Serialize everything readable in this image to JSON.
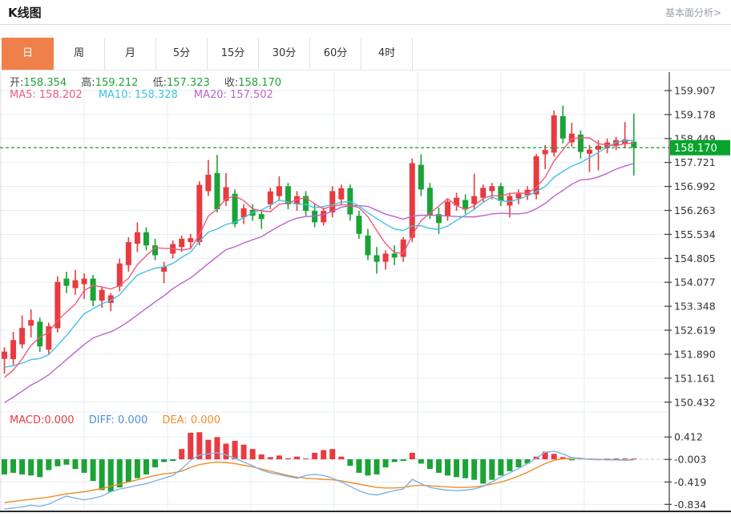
{
  "header": {
    "title": "K线图",
    "link_label": "基本面分析>"
  },
  "tabs": [
    {
      "label": "日",
      "active": true
    },
    {
      "label": "周",
      "active": false
    },
    {
      "label": "月",
      "active": false
    },
    {
      "label": "5分",
      "active": false
    },
    {
      "label": "15分",
      "active": false
    },
    {
      "label": "30分",
      "active": false
    },
    {
      "label": "60分",
      "active": false
    },
    {
      "label": "4时",
      "active": false
    }
  ],
  "indicators": {
    "ohlc": {
      "open_label": "开:",
      "open": "158.354",
      "high_label": "高:",
      "high": "159.212",
      "low_label": "低:",
      "low": "157.323",
      "close_label": "收:",
      "close": "158.170"
    },
    "ma": {
      "ma5_label": "MA5:",
      "ma5": "158.202",
      "ma10_label": "MA10:",
      "ma10": "158.328",
      "ma20_label": "MA20:",
      "ma20": "157.502"
    },
    "macd": {
      "macd_label": "MACD:",
      "macd": "0.000",
      "diff_label": "DIFF:",
      "diff": "0.000",
      "dea_label": "DEA:",
      "dea": "0.000"
    }
  },
  "colors": {
    "up": "#e83b40",
    "down": "#1ba336",
    "accent": "#f0804a",
    "ma5": "#ee5b80",
    "ma10": "#40c4e4",
    "ma20": "#bd62ce",
    "diff": "#7fb2e5",
    "dea": "#f08c28",
    "price_label_bg": "#09a42c",
    "current_line": "#09a42c",
    "grid": "#e4edf4",
    "axis": "#3c3c3c",
    "zero_line": "#aacdec",
    "tick_text": "#333333"
  },
  "chart_data": {
    "type": "candlestick",
    "title": "Daily K-line with MA5/MA10/MA20 and MACD sub-chart",
    "legend_position": "top-left",
    "grid": true,
    "price_axis_ticks": [
      159.907,
      159.178,
      158.449,
      157.721,
      156.992,
      156.263,
      155.534,
      154.805,
      154.077,
      153.348,
      152.619,
      151.89,
      151.161,
      150.432
    ],
    "price_axis_range": [
      150.432,
      159.907
    ],
    "current_price": 158.17,
    "last_candle_ohlc": {
      "open": 158.354,
      "high": 159.212,
      "low": 157.323,
      "close": 158.17
    },
    "candles": [
      [
        151.75,
        152.1,
        151.3,
        151.97
      ],
      [
        151.74,
        152.57,
        151.56,
        152.32
      ],
      [
        152.19,
        153.07,
        152.07,
        152.69
      ],
      [
        152.76,
        153.25,
        152.4,
        152.93
      ],
      [
        152.88,
        153.0,
        151.96,
        152.13
      ],
      [
        152.03,
        152.85,
        151.9,
        152.74
      ],
      [
        152.68,
        154.26,
        152.55,
        154.09
      ],
      [
        154.19,
        154.4,
        153.75,
        153.97
      ],
      [
        153.9,
        154.46,
        153.7,
        154.14
      ],
      [
        154.02,
        154.35,
        153.57,
        154.19
      ],
      [
        154.19,
        154.3,
        153.35,
        153.52
      ],
      [
        153.52,
        153.95,
        153.3,
        153.85
      ],
      [
        153.45,
        153.75,
        153.2,
        153.68
      ],
      [
        153.95,
        154.8,
        153.8,
        154.65
      ],
      [
        154.6,
        155.45,
        154.4,
        155.3
      ],
      [
        155.25,
        155.9,
        155.0,
        155.6
      ],
      [
        155.6,
        155.75,
        155.05,
        155.2
      ],
      [
        155.2,
        155.4,
        154.75,
        154.9
      ],
      [
        154.4,
        154.7,
        154.05,
        154.55
      ],
      [
        154.95,
        155.35,
        154.8,
        155.24
      ],
      [
        155.15,
        155.5,
        155.0,
        155.4
      ],
      [
        155.3,
        155.55,
        155.1,
        155.42
      ],
      [
        155.3,
        157.15,
        155.2,
        157.04
      ],
      [
        156.85,
        157.8,
        156.7,
        157.35
      ],
      [
        157.4,
        157.95,
        156.2,
        156.3
      ],
      [
        156.55,
        157.4,
        156.4,
        156.97
      ],
      [
        156.77,
        156.9,
        155.75,
        155.85
      ],
      [
        156.05,
        156.45,
        155.85,
        156.33
      ],
      [
        156.28,
        156.45,
        155.95,
        156.1
      ],
      [
        156.15,
        156.3,
        155.7,
        156.0
      ],
      [
        156.45,
        156.95,
        156.3,
        156.84
      ],
      [
        156.7,
        157.3,
        156.55,
        157.0
      ],
      [
        157.0,
        157.1,
        156.3,
        156.45
      ],
      [
        156.45,
        156.85,
        156.25,
        156.7
      ],
      [
        156.7,
        156.85,
        156.1,
        156.25
      ],
      [
        156.25,
        156.45,
        155.75,
        155.9
      ],
      [
        155.9,
        156.35,
        155.8,
        156.25
      ],
      [
        156.2,
        157.0,
        156.05,
        156.85
      ],
      [
        156.6,
        157.05,
        156.45,
        156.94
      ],
      [
        156.94,
        157.05,
        155.95,
        156.14
      ],
      [
        156.1,
        156.25,
        155.4,
        155.55
      ],
      [
        155.5,
        155.7,
        154.75,
        154.9
      ],
      [
        154.9,
        155.15,
        154.34,
        154.7
      ],
      [
        154.7,
        155.05,
        154.46,
        154.95
      ],
      [
        154.95,
        155.2,
        154.6,
        154.83
      ],
      [
        154.85,
        155.45,
        154.7,
        155.38
      ],
      [
        155.43,
        157.84,
        155.3,
        157.7
      ],
      [
        157.65,
        157.97,
        156.7,
        156.9
      ],
      [
        156.95,
        157.1,
        156.0,
        156.1
      ],
      [
        156.15,
        156.35,
        155.55,
        155.88
      ],
      [
        156.09,
        156.6,
        155.95,
        156.53
      ],
      [
        156.41,
        156.8,
        156.25,
        156.65
      ],
      [
        156.58,
        156.75,
        156.15,
        156.29
      ],
      [
        156.46,
        157.38,
        156.3,
        156.7
      ],
      [
        156.65,
        157.05,
        156.5,
        156.95
      ],
      [
        156.85,
        157.1,
        156.6,
        157.0
      ],
      [
        157.0,
        157.1,
        156.4,
        156.55
      ],
      [
        156.41,
        156.8,
        156.05,
        156.7
      ],
      [
        156.63,
        156.9,
        156.45,
        156.77
      ],
      [
        156.72,
        157.0,
        156.58,
        156.89
      ],
      [
        156.75,
        157.98,
        156.6,
        157.91
      ],
      [
        157.97,
        158.25,
        157.52,
        158.1
      ],
      [
        158.02,
        159.3,
        157.9,
        159.15
      ],
      [
        159.13,
        159.45,
        158.3,
        158.45
      ],
      [
        158.33,
        158.93,
        158.2,
        158.6
      ],
      [
        158.57,
        158.7,
        157.84,
        158.04
      ],
      [
        157.99,
        158.25,
        157.43,
        158.11
      ],
      [
        158.11,
        158.4,
        157.48,
        158.23
      ],
      [
        158.16,
        158.45,
        158.0,
        158.33
      ],
      [
        158.23,
        158.5,
        158.1,
        158.4
      ],
      [
        158.28,
        158.95,
        158.15,
        158.42
      ],
      [
        158.354,
        159.212,
        157.323,
        158.17
      ]
    ],
    "ma_prehistory_closes": [
      149.0,
      149.1,
      149.2,
      149.3,
      149.3,
      149.4,
      149.45,
      149.5,
      149.6,
      149.55,
      151.9,
      151.9,
      151.85,
      151.8,
      151.6,
      151.2,
      151.0,
      150.85,
      150.9
    ],
    "macd_panel": {
      "type": "bar",
      "axis_ticks": [
        0.412,
        -0.003,
        -0.419,
        -0.834
      ],
      "histogram": [
        -0.28,
        -0.25,
        -0.28,
        -0.3,
        -0.33,
        -0.2,
        -0.13,
        -0.1,
        -0.18,
        -0.25,
        -0.4,
        -0.57,
        -0.6,
        -0.52,
        -0.42,
        -0.35,
        -0.28,
        -0.15,
        -0.05,
        -0.03,
        0.19,
        0.49,
        0.5,
        0.36,
        0.41,
        0.29,
        0.34,
        0.27,
        0.19,
        0.09,
        0.04,
        0.07,
        0.02,
        0.05,
        0.0,
        0.12,
        0.17,
        0.19,
        0.05,
        -0.12,
        -0.25,
        -0.3,
        -0.28,
        -0.15,
        -0.05,
        -0.03,
        0.12,
        -0.08,
        -0.18,
        -0.25,
        -0.3,
        -0.33,
        -0.35,
        -0.38,
        -0.45,
        -0.38,
        -0.3,
        -0.22,
        -0.15,
        -0.08,
        0.05,
        0.14,
        0.1,
        0.04,
        -0.02,
        0.02,
        0.01,
        -0.01,
        0.01,
        0.0,
        0.0,
        0.0
      ],
      "diff": [
        -0.92,
        -0.9,
        -0.88,
        -0.85,
        -0.87,
        -0.83,
        -0.75,
        -0.68,
        -0.72,
        -0.75,
        -0.72,
        -0.68,
        -0.6,
        -0.55,
        -0.52,
        -0.48,
        -0.45,
        -0.4,
        -0.35,
        -0.3,
        -0.18,
        -0.02,
        0.08,
        0.1,
        0.12,
        0.08,
        0.02,
        -0.05,
        -0.12,
        -0.2,
        -0.25,
        -0.28,
        -0.32,
        -0.35,
        -0.3,
        -0.28,
        -0.3,
        -0.35,
        -0.42,
        -0.5,
        -0.58,
        -0.64,
        -0.66,
        -0.62,
        -0.58,
        -0.55,
        -0.37,
        -0.45,
        -0.52,
        -0.55,
        -0.57,
        -0.58,
        -0.57,
        -0.55,
        -0.5,
        -0.42,
        -0.33,
        -0.25,
        -0.17,
        -0.08,
        0.02,
        0.13,
        0.15,
        0.1,
        0.03,
        0.02,
        0.0,
        -0.01,
        0.0,
        -0.01,
        -0.02,
        0.0
      ],
      "dea": [
        -0.8,
        -0.78,
        -0.76,
        -0.74,
        -0.72,
        -0.7,
        -0.67,
        -0.64,
        -0.62,
        -0.6,
        -0.57,
        -0.54,
        -0.5,
        -0.46,
        -0.42,
        -0.38,
        -0.34,
        -0.3,
        -0.27,
        -0.25,
        -0.22,
        -0.15,
        -0.1,
        -0.07,
        -0.05,
        -0.06,
        -0.08,
        -0.11,
        -0.14,
        -0.18,
        -0.22,
        -0.26,
        -0.3,
        -0.33,
        -0.35,
        -0.36,
        -0.37,
        -0.38,
        -0.4,
        -0.43,
        -0.46,
        -0.49,
        -0.52,
        -0.53,
        -0.53,
        -0.52,
        -0.49,
        -0.48,
        -0.49,
        -0.5,
        -0.51,
        -0.52,
        -0.52,
        -0.51,
        -0.49,
        -0.46,
        -0.42,
        -0.37,
        -0.31,
        -0.24,
        -0.16,
        -0.08,
        -0.02,
        0.01,
        0.02,
        0.01,
        0.0,
        0.0,
        -0.01,
        -0.01,
        -0.02,
        -0.01
      ]
    }
  }
}
